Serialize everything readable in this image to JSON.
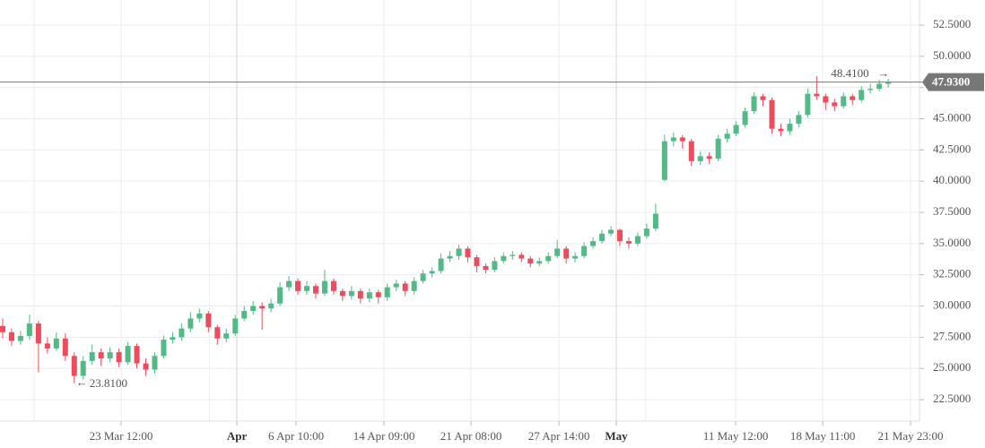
{
  "chart_data": {
    "type": "candlestick",
    "open": [
      28.4,
      27.9,
      27.2,
      27.6,
      28.6,
      27.0,
      26.6,
      27.4,
      26.0,
      24.4,
      25.6,
      26.3,
      25.8,
      26.3,
      25.5,
      26.8,
      25.4,
      24.9,
      26.0,
      27.3,
      27.5,
      28.2,
      29.0,
      29.4,
      28.3,
      27.4,
      27.8,
      29.0,
      29.6,
      30.0,
      29.8,
      30.2,
      31.5,
      32.0,
      31.2,
      31.6,
      31.0,
      32.0,
      31.2,
      30.8,
      31.2,
      30.6,
      31.1,
      30.7,
      31.5,
      31.8,
      31.2,
      32.0,
      32.6,
      32.8,
      33.8,
      34.0,
      34.6,
      33.9,
      33.2,
      32.9,
      33.6,
      34.0,
      34.1,
      33.8,
      33.4,
      33.6,
      34.0,
      34.6,
      33.8,
      34.0,
      34.8,
      35.2,
      35.8,
      36.1,
      35.2,
      35.0,
      35.6,
      36.2,
      40.1,
      43.2,
      43.5,
      43.2,
      41.6,
      42.0,
      41.8,
      43.4,
      43.8,
      44.5,
      45.6,
      46.8,
      46.5,
      44.2,
      44.0,
      44.6,
      45.3,
      47.0,
      46.8,
      46.3,
      46.0,
      46.8,
      46.5,
      47.3,
      47.4,
      47.8
    ],
    "high": [
      29.0,
      28.2,
      28.0,
      29.3,
      28.8,
      27.5,
      27.9,
      27.8,
      26.3,
      26.0,
      26.9,
      26.6,
      26.7,
      26.6,
      27.1,
      27.0,
      25.8,
      26.3,
      27.6,
      27.9,
      28.6,
      29.5,
      29.8,
      29.6,
      28.5,
      28.2,
      29.3,
      30.0,
      30.4,
      30.3,
      30.6,
      31.9,
      32.4,
      32.2,
      32.0,
      31.8,
      32.9,
      32.2,
      31.4,
      31.6,
      31.4,
      31.4,
      31.3,
      31.8,
      32.1,
      32.0,
      32.3,
      32.9,
      33.1,
      34.2,
      34.4,
      34.9,
      34.8,
      34.1,
      33.4,
      33.9,
      34.3,
      34.4,
      34.3,
      34.0,
      33.9,
      34.3,
      35.3,
      34.8,
      34.3,
      35.1,
      35.5,
      36.1,
      36.4,
      36.2,
      35.5,
      35.9,
      36.6,
      38.2,
      43.7,
      43.9,
      43.7,
      43.4,
      42.4,
      42.3,
      43.7,
      44.2,
      44.8,
      45.9,
      47.1,
      47.0,
      46.7,
      44.6,
      45.0,
      45.6,
      47.4,
      48.41,
      47.0,
      46.6,
      47.1,
      47.0,
      47.6,
      47.8,
      48.1,
      48.2
    ],
    "low": [
      27.4,
      26.8,
      26.9,
      27.3,
      24.7,
      26.2,
      26.4,
      25.6,
      23.81,
      24.1,
      25.3,
      25.2,
      25.5,
      25.1,
      25.3,
      25.0,
      24.4,
      24.6,
      25.8,
      27.0,
      27.2,
      27.9,
      28.7,
      27.9,
      26.9,
      27.1,
      27.6,
      28.8,
      29.3,
      28.1,
      29.5,
      30.0,
      31.2,
      30.9,
      30.9,
      30.6,
      30.8,
      30.9,
      30.4,
      30.5,
      30.2,
      30.3,
      30.2,
      30.4,
      31.2,
      30.8,
      30.9,
      31.8,
      32.3,
      32.6,
      33.5,
      33.7,
      33.5,
      32.7,
      32.6,
      32.7,
      33.4,
      33.7,
      33.5,
      33.1,
      33.2,
      33.4,
      33.8,
      33.4,
      33.5,
      33.8,
      34.6,
      35.0,
      35.6,
      34.8,
      34.6,
      34.8,
      35.4,
      36.0,
      40.0,
      42.8,
      42.6,
      41.2,
      41.3,
      41.4,
      41.6,
      43.1,
      43.6,
      44.3,
      45.4,
      46.0,
      43.8,
      43.6,
      43.7,
      44.3,
      45.1,
      46.5,
      45.7,
      45.6,
      45.8,
      46.1,
      46.3,
      47.0,
      47.2,
      47.5
    ],
    "close": [
      27.9,
      27.2,
      27.6,
      28.6,
      27.0,
      26.6,
      27.4,
      26.0,
      24.4,
      25.6,
      26.3,
      25.8,
      26.3,
      25.5,
      26.8,
      25.4,
      24.9,
      26.0,
      27.3,
      27.5,
      28.2,
      29.0,
      29.4,
      28.3,
      27.4,
      27.8,
      29.0,
      29.6,
      30.0,
      29.8,
      30.2,
      31.5,
      32.0,
      31.2,
      31.6,
      31.0,
      32.0,
      31.2,
      30.8,
      31.2,
      30.6,
      31.1,
      30.7,
      31.5,
      31.8,
      31.2,
      32.0,
      32.6,
      32.8,
      33.8,
      34.0,
      34.6,
      33.9,
      33.2,
      32.9,
      33.6,
      34.0,
      34.1,
      33.8,
      33.4,
      33.6,
      34.0,
      34.6,
      33.8,
      34.0,
      34.8,
      35.2,
      35.8,
      36.1,
      35.2,
      35.0,
      35.6,
      36.2,
      37.4,
      43.2,
      43.5,
      43.2,
      41.6,
      42.0,
      41.8,
      43.4,
      43.8,
      44.5,
      45.6,
      46.8,
      46.5,
      44.2,
      44.0,
      44.6,
      45.3,
      47.0,
      46.8,
      46.3,
      46.0,
      46.8,
      46.5,
      47.3,
      47.4,
      47.8,
      47.93
    ],
    "up_color": "#53b987",
    "down_color": "#eb4d5c",
    "xlim": [
      -0.3,
      102.5
    ],
    "xticks": [
      {
        "value": 13.24,
        "label": "23 Mar 12:00"
      },
      {
        "value": 26.18,
        "label": "Apr"
      },
      {
        "value": 32.8,
        "label": "6 Apr 10:00"
      },
      {
        "value": 42.63,
        "label": "14 Apr 09:00"
      },
      {
        "value": 52.36,
        "label": "21 Apr 08:00"
      },
      {
        "value": 62.19,
        "label": "27 Apr 14:00"
      },
      {
        "value": 68.6,
        "label": "May"
      },
      {
        "value": 81.95,
        "label": "11 May 12:00"
      },
      {
        "value": 91.68,
        "label": "18 May 11:00"
      },
      {
        "value": 101.5,
        "label": "21 May 23:00"
      }
    ],
    "xgrid": [
      3.5,
      23.1,
      71.9
    ],
    "ylim": [
      20.78,
      54.51
    ],
    "yticks": [
      {
        "value": 22.5,
        "label": "22.5000"
      },
      {
        "value": 25,
        "label": "25.0000"
      },
      {
        "value": 27.5,
        "label": "27.5000"
      },
      {
        "value": 30,
        "label": "30.0000"
      },
      {
        "value": 32.5,
        "label": "32.5000"
      },
      {
        "value": 35,
        "label": "35.0000"
      },
      {
        "value": 37.5,
        "label": "37.5000"
      },
      {
        "value": 40,
        "label": "40.0000"
      },
      {
        "value": 42.5,
        "label": "42.5000"
      },
      {
        "value": 45,
        "label": "45.0000"
      },
      {
        "value": 47.5,
        "label": "47.5000"
      },
      {
        "value": 50,
        "label": "50.0000"
      },
      {
        "value": 52.5,
        "label": "52.5000"
      }
    ],
    "grid": true,
    "low_label": "23.8100",
    "high_label": "48.4100",
    "last_label": "47.9300"
  }
}
